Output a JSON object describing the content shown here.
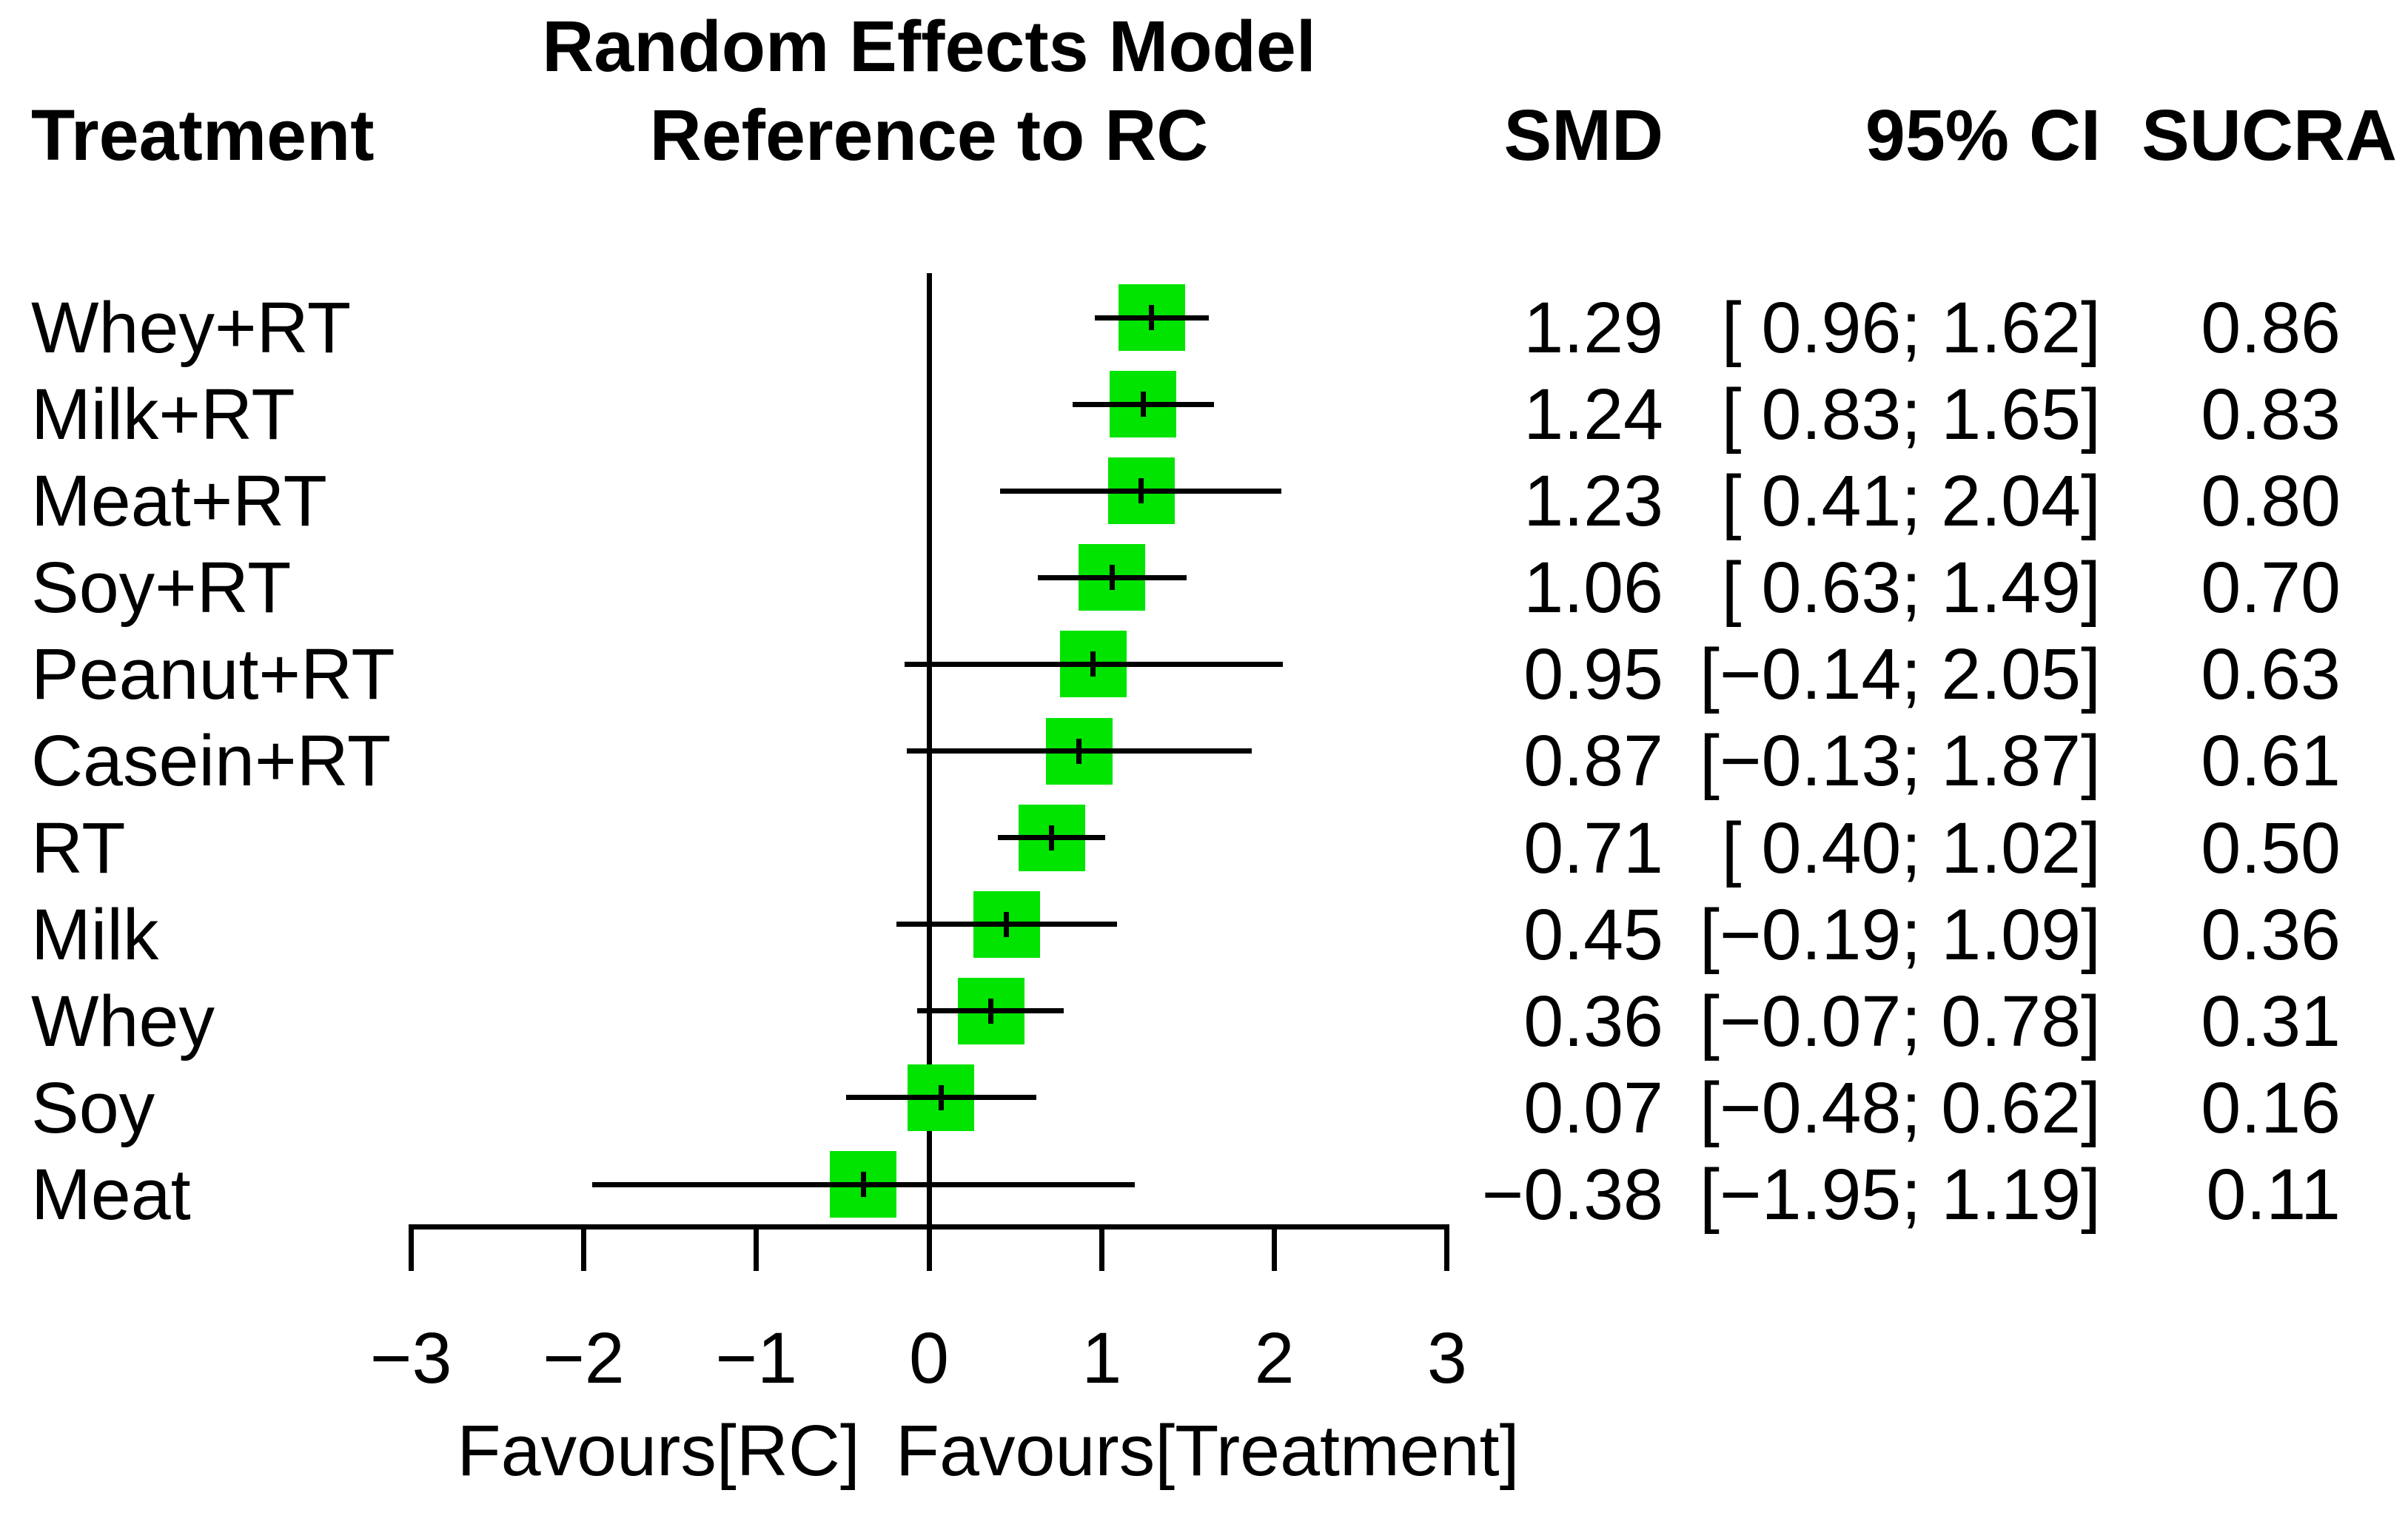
{
  "header": {
    "col_treatment": "Treatment",
    "model_line1": "Random Effects Model",
    "model_line2": "Reference to RC",
    "col_smd": "SMD",
    "col_ci": "95% CI",
    "col_sucra": "SUCRA"
  },
  "chart_data": {
    "type": "forest",
    "title": "Random Effects Model Reference to RC",
    "x_axis": {
      "range": [
        -3,
        3
      ],
      "ticks": [
        -3,
        -2,
        -1,
        0,
        1,
        2,
        3
      ],
      "tick_labels": [
        "−3",
        "−2",
        "−1",
        "0",
        "1",
        "2",
        "3"
      ],
      "reference_line": 0,
      "caption_left": "Favours[RC]",
      "caption_right": "Favours[Treatment]"
    },
    "columns": [
      "Treatment",
      "SMD",
      "95% CI",
      "SUCRA"
    ],
    "rows": [
      {
        "treatment": "Whey+RT",
        "smd": 1.29,
        "lower": 0.96,
        "upper": 1.62,
        "sucra": 0.86,
        "smd_label": "1.29",
        "ci_label": "[ 0.96; 1.62]",
        "sucra_label": "0.86"
      },
      {
        "treatment": "Milk+RT",
        "smd": 1.24,
        "lower": 0.83,
        "upper": 1.65,
        "sucra": 0.83,
        "smd_label": "1.24",
        "ci_label": "[ 0.83; 1.65]",
        "sucra_label": "0.83"
      },
      {
        "treatment": "Meat+RT",
        "smd": 1.23,
        "lower": 0.41,
        "upper": 2.04,
        "sucra": 0.8,
        "smd_label": "1.23",
        "ci_label": "[ 0.41; 2.04]",
        "sucra_label": "0.80"
      },
      {
        "treatment": "Soy+RT",
        "smd": 1.06,
        "lower": 0.63,
        "upper": 1.49,
        "sucra": 0.7,
        "smd_label": "1.06",
        "ci_label": "[ 0.63; 1.49]",
        "sucra_label": "0.70"
      },
      {
        "treatment": "Peanut+RT",
        "smd": 0.95,
        "lower": -0.14,
        "upper": 2.05,
        "sucra": 0.63,
        "smd_label": "0.95",
        "ci_label": "[−0.14; 2.05]",
        "sucra_label": "0.63"
      },
      {
        "treatment": "Casein+RT",
        "smd": 0.87,
        "lower": -0.13,
        "upper": 1.87,
        "sucra": 0.61,
        "smd_label": "0.87",
        "ci_label": "[−0.13; 1.87]",
        "sucra_label": "0.61"
      },
      {
        "treatment": "RT",
        "smd": 0.71,
        "lower": 0.4,
        "upper": 1.02,
        "sucra": 0.5,
        "smd_label": "0.71",
        "ci_label": "[ 0.40; 1.02]",
        "sucra_label": "0.50"
      },
      {
        "treatment": "Milk",
        "smd": 0.45,
        "lower": -0.19,
        "upper": 1.09,
        "sucra": 0.36,
        "smd_label": "0.45",
        "ci_label": "[−0.19; 1.09]",
        "sucra_label": "0.36"
      },
      {
        "treatment": "Whey",
        "smd": 0.36,
        "lower": -0.07,
        "upper": 0.78,
        "sucra": 0.31,
        "smd_label": "0.36",
        "ci_label": "[−0.07; 0.78]",
        "sucra_label": "0.31"
      },
      {
        "treatment": "Soy",
        "smd": 0.07,
        "lower": -0.48,
        "upper": 0.62,
        "sucra": 0.16,
        "smd_label": "0.07",
        "ci_label": "[−0.48; 0.62]",
        "sucra_label": "0.16"
      },
      {
        "treatment": "Meat",
        "smd": -0.38,
        "lower": -1.95,
        "upper": 1.19,
        "sucra": 0.11,
        "smd_label": "−0.38",
        "ci_label": "[−1.95; 1.19]",
        "sucra_label": "0.11"
      }
    ],
    "marker_color": "#00E400",
    "line_color": "#000000",
    "legend": null,
    "grid": false
  }
}
